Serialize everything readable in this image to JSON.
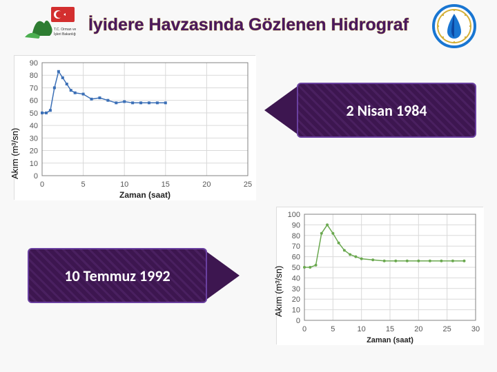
{
  "title": {
    "text": "İyidere Havzasında Gözlenen Hidrograf",
    "color": "#4a1860",
    "stroke": "#c0a050",
    "fontsize": 25
  },
  "logo_left": {
    "label": "T.C. Orman ve Su İşleri Bakanlığı",
    "flag_color": "#d32f2f",
    "tree_color": "#2e7d32"
  },
  "logo_right": {
    "label": "Su Yönetimi Genel Müdürlüğü",
    "ring_color": "#1976d2",
    "drop_color": "#0d47a1",
    "star_color": "#d4af37"
  },
  "charts": {
    "chart1": {
      "type": "line",
      "x_label": "Zaman (saat)",
      "y_label_outer": "Akım (m³/sn)",
      "xlim": [
        0,
        25
      ],
      "ylim": [
        0,
        90
      ],
      "xtick_step": 5,
      "ytick_step": 10,
      "line_color": "#3b6fb6",
      "marker": "square",
      "marker_size": 4,
      "line_width": 1.5,
      "grid_color": "#d9d9d9",
      "axis_color": "#808080",
      "tick_font": 11,
      "label_font": 12,
      "background_color": "#ffffff",
      "points": [
        {
          "x": 0.0,
          "y": 50
        },
        {
          "x": 0.5,
          "y": 50
        },
        {
          "x": 1.0,
          "y": 52
        },
        {
          "x": 1.5,
          "y": 70
        },
        {
          "x": 2.0,
          "y": 83
        },
        {
          "x": 2.5,
          "y": 78
        },
        {
          "x": 3.0,
          "y": 73
        },
        {
          "x": 3.5,
          "y": 68
        },
        {
          "x": 4.0,
          "y": 66
        },
        {
          "x": 5.0,
          "y": 65
        },
        {
          "x": 6.0,
          "y": 61
        },
        {
          "x": 7.0,
          "y": 62
        },
        {
          "x": 8.0,
          "y": 60
        },
        {
          "x": 9.0,
          "y": 58
        },
        {
          "x": 10.0,
          "y": 59
        },
        {
          "x": 11.0,
          "y": 58
        },
        {
          "x": 12.0,
          "y": 58
        },
        {
          "x": 13.0,
          "y": 58
        },
        {
          "x": 14.0,
          "y": 58
        },
        {
          "x": 15.0,
          "y": 58
        }
      ]
    },
    "chart2": {
      "type": "line",
      "x_label": "Zaman (saat)",
      "y_label_outer": "Akım (m³/sn)",
      "xlim": [
        0,
        30
      ],
      "ylim": [
        0,
        100
      ],
      "xtick_step": 5,
      "ytick_step": 10,
      "line_color": "#6aa84f",
      "marker": "circle",
      "marker_size": 4,
      "line_width": 1.5,
      "grid_color": "#d9d9d9",
      "axis_color": "#808080",
      "tick_font": 11,
      "label_font": 11,
      "background_color": "#ffffff",
      "points": [
        {
          "x": 0,
          "y": 50
        },
        {
          "x": 1,
          "y": 50
        },
        {
          "x": 2,
          "y": 52
        },
        {
          "x": 3,
          "y": 82
        },
        {
          "x": 4,
          "y": 90
        },
        {
          "x": 5,
          "y": 82
        },
        {
          "x": 6,
          "y": 73
        },
        {
          "x": 7,
          "y": 66
        },
        {
          "x": 8,
          "y": 62
        },
        {
          "x": 9,
          "y": 60
        },
        {
          "x": 10,
          "y": 58
        },
        {
          "x": 12,
          "y": 57
        },
        {
          "x": 14,
          "y": 56
        },
        {
          "x": 16,
          "y": 56
        },
        {
          "x": 18,
          "y": 56
        },
        {
          "x": 20,
          "y": 56
        },
        {
          "x": 22,
          "y": 56
        },
        {
          "x": 24,
          "y": 56
        },
        {
          "x": 26,
          "y": 56
        },
        {
          "x": 28,
          "y": 56
        }
      ]
    }
  },
  "callouts": {
    "right": {
      "text": "2 Nisan 1984",
      "bg_color": "#3d1650",
      "text_color": "#ffffff",
      "border_color": "#6a40a0",
      "arrow_dir": "left"
    },
    "left": {
      "text": "10 Temmuz 1992",
      "bg_color": "#3d1650",
      "text_color": "#ffffff",
      "border_color": "#6a40a0",
      "arrow_dir": "right"
    }
  }
}
